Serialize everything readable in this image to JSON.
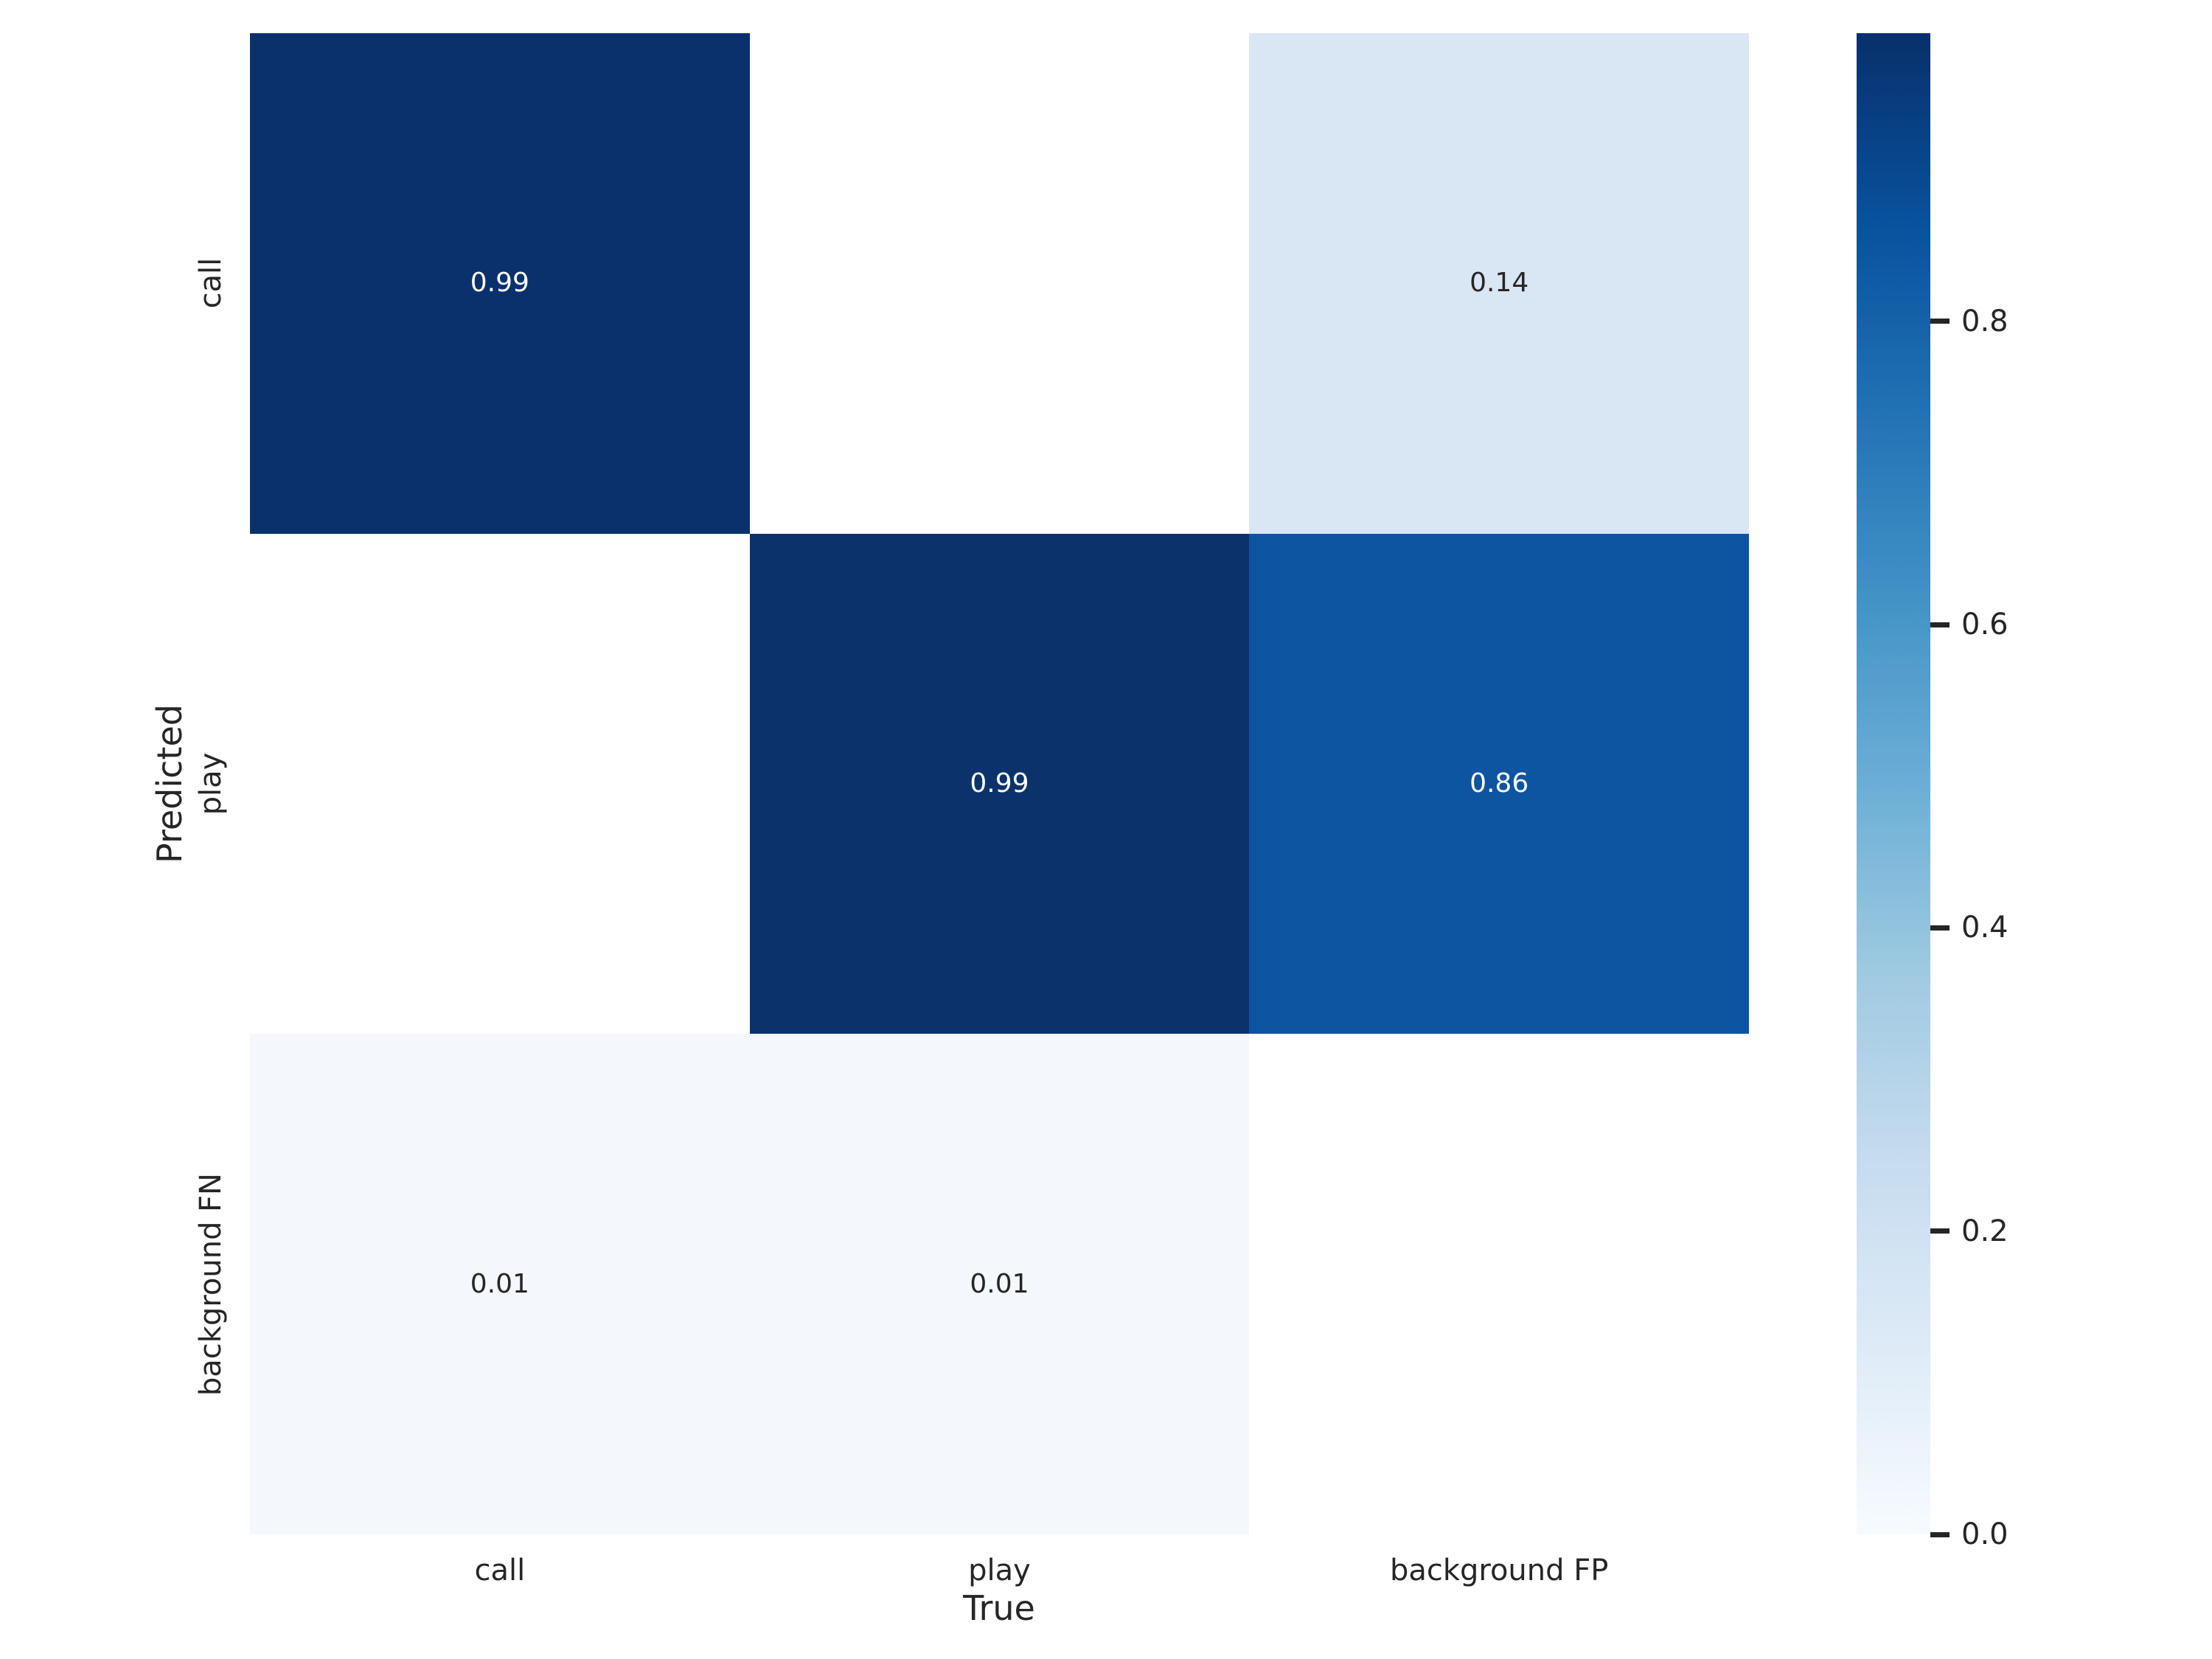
{
  "figure": {
    "background_color": "#ffffff",
    "text_color": "#262626"
  },
  "chart_data": {
    "type": "heatmap",
    "title": "",
    "xlabel": "True",
    "ylabel": "Predicted",
    "x_categories": [
      "call",
      "play",
      "background FP"
    ],
    "y_categories": [
      "call",
      "play",
      "background FN"
    ],
    "cells": [
      [
        0.99,
        null,
        0.14
      ],
      [
        null,
        0.99,
        0.86
      ],
      [
        0.01,
        0.01,
        null
      ]
    ],
    "cell_labels": [
      [
        "0.99",
        "",
        "0.14"
      ],
      [
        "",
        "0.99",
        "0.86"
      ],
      [
        "0.01",
        "0.01",
        ""
      ]
    ],
    "cell_colors": [
      [
        "#0a316b",
        "#ffffff",
        "#d9e6f3"
      ],
      [
        "#ffffff",
        "#0b326b",
        "#0d55a0"
      ],
      [
        "#f4f8fc",
        "#f4f8fc",
        "#ffffff"
      ]
    ],
    "cell_text_colors": [
      [
        "#ffffff",
        "",
        "#262626"
      ],
      [
        "",
        "#ffffff",
        "#ffffff"
      ],
      [
        "#262626",
        "#262626",
        ""
      ]
    ],
    "colormap": "Blues",
    "grid": false,
    "legend": false,
    "colorbar": {
      "position": "right",
      "vmin": 0.0,
      "vmax": 0.99,
      "tick_labels": [
        "0.0",
        "0.2",
        "0.4",
        "0.6",
        "0.8"
      ],
      "tick_values": [
        0.0,
        0.2,
        0.4,
        0.6,
        0.8
      ],
      "gradient_stops": [
        "#f7fbff",
        "#deebf7",
        "#c6dbef",
        "#9ecae1",
        "#6baed6",
        "#4292c6",
        "#2171b5",
        "#08519c",
        "#08306b"
      ]
    }
  }
}
